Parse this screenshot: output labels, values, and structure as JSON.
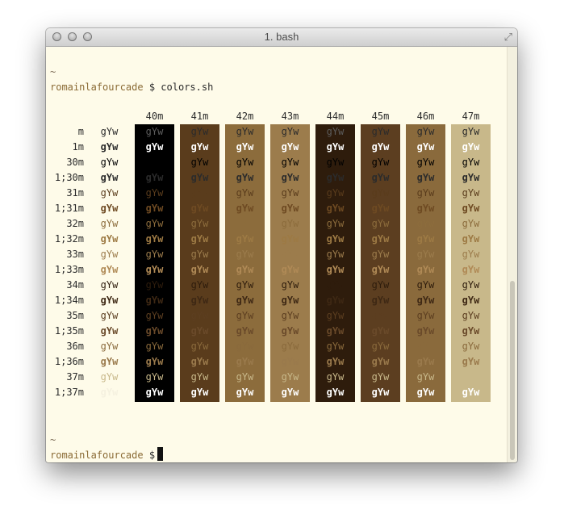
{
  "window": {
    "title": "1. bash"
  },
  "terminal": {
    "prompt_user": "romainlafourcade",
    "prompt_symbol": "$",
    "command": "colors.sh",
    "tilde": "~"
  },
  "palette": {
    "background": "#fefbe9",
    "text": "#2b2b2b",
    "bg": [
      "#000000",
      "#5a3c1c",
      "#8c6c3c",
      "#9c7c4c",
      "#2e1c0c",
      "#5c3e20",
      "#8a6a3c",
      "#c8b88a"
    ],
    "fg": [
      "#000000",
      "#5a3c1c",
      "#8c6c3c",
      "#9c7c4c",
      "#2e1c0c",
      "#5c3e20",
      "#8a6a3c",
      "#c8b88a"
    ],
    "fg_bold": [
      "#2b2b2b",
      "#6e4a22",
      "#9d7a44",
      "#b08a56",
      "#3e2814",
      "#6a4a2a",
      "#9a7a4c",
      "#ffffff"
    ]
  },
  "table": {
    "sample": "gYw",
    "headers": [
      "40m",
      "41m",
      "42m",
      "43m",
      "44m",
      "45m",
      "46m",
      "47m"
    ],
    "rows": [
      {
        "label": "m",
        "fg": "default"
      },
      {
        "label": "1m",
        "fg": "bold"
      },
      {
        "label": "30m",
        "fg": 0,
        "bold": false
      },
      {
        "label": "1;30m",
        "fg": 0,
        "bold": true
      },
      {
        "label": "31m",
        "fg": 1,
        "bold": false
      },
      {
        "label": "1;31m",
        "fg": 1,
        "bold": true
      },
      {
        "label": "32m",
        "fg": 2,
        "bold": false
      },
      {
        "label": "1;32m",
        "fg": 2,
        "bold": true
      },
      {
        "label": "33m",
        "fg": 3,
        "bold": false
      },
      {
        "label": "1;33m",
        "fg": 3,
        "bold": true
      },
      {
        "label": "34m",
        "fg": 4,
        "bold": false
      },
      {
        "label": "1;34m",
        "fg": 4,
        "bold": true
      },
      {
        "label": "35m",
        "fg": 5,
        "bold": false
      },
      {
        "label": "1;35m",
        "fg": 5,
        "bold": true
      },
      {
        "label": "36m",
        "fg": 6,
        "bold": false
      },
      {
        "label": "1;36m",
        "fg": 6,
        "bold": true
      },
      {
        "label": "37m",
        "fg": 7,
        "bold": false
      },
      {
        "label": "1;37m",
        "fg": 7,
        "bold": true
      }
    ]
  }
}
